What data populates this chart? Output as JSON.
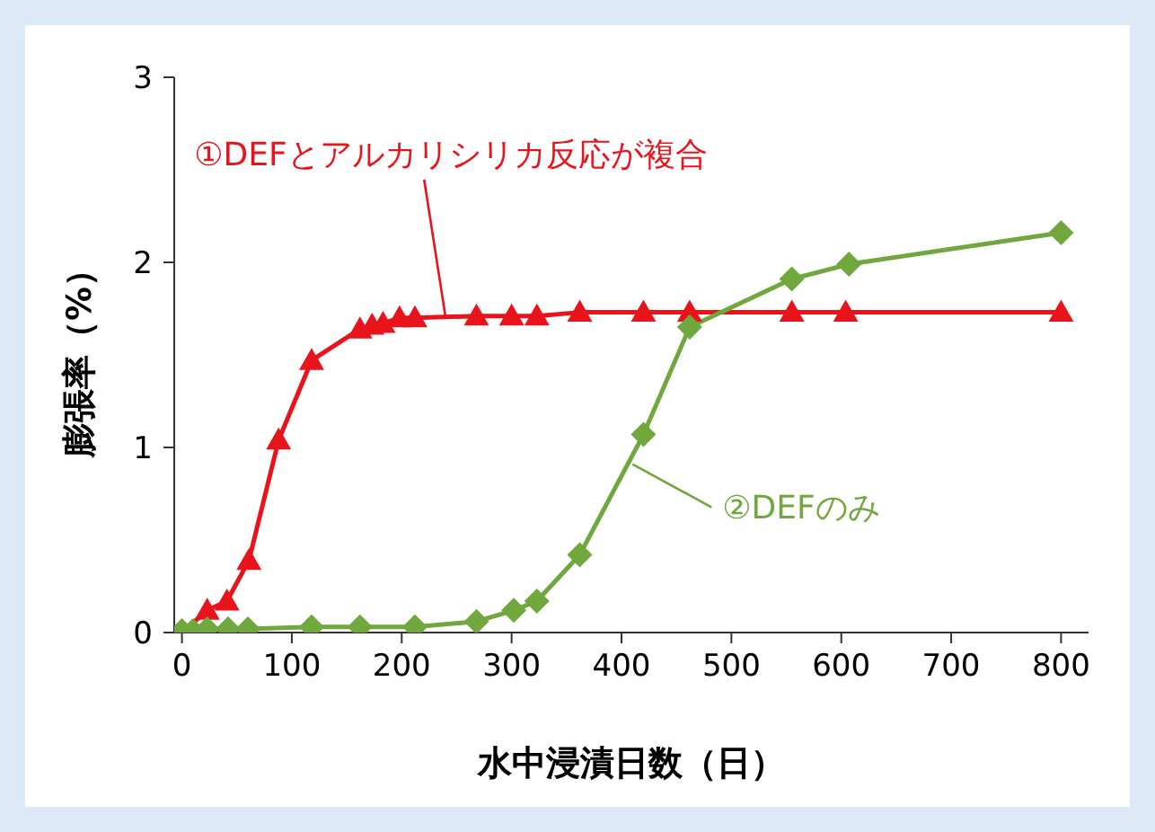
{
  "chart_data": {
    "type": "line",
    "xlabel": "水中浸漬日数（日）",
    "ylabel": "膨張率（%）",
    "xlim": [
      -7,
      825
    ],
    "xticks": [
      0,
      100,
      200,
      300,
      400,
      500,
      600,
      700,
      800
    ],
    "ylim": [
      0,
      3
    ],
    "yticks": [
      0,
      1,
      2,
      3
    ],
    "grid": false,
    "series": [
      {
        "color": "#e8141c",
        "marker": "triangle",
        "x": [
          0,
          23,
          41,
          61,
          88,
          118,
          162,
          173,
          183,
          198,
          212,
          268,
          300,
          323,
          362,
          420,
          462,
          555,
          604,
          800
        ],
        "values": [
          0,
          0.12,
          0.17,
          0.39,
          1.04,
          1.47,
          1.64,
          1.66,
          1.67,
          1.7,
          1.7,
          1.71,
          1.71,
          1.71,
          1.73,
          1.73,
          1.73,
          1.73,
          1.73,
          1.73
        ]
      },
      {
        "color": "#70a83e",
        "marker": "diamond",
        "x": [
          0,
          10,
          23,
          42,
          60,
          118,
          162,
          212,
          268,
          302,
          323,
          362,
          420,
          462,
          555,
          607,
          800
        ],
        "values": [
          0.01,
          0.01,
          0.02,
          0.02,
          0.02,
          0.03,
          0.03,
          0.03,
          0.06,
          0.12,
          0.17,
          0.42,
          1.07,
          1.65,
          1.91,
          1.99,
          2.16
        ]
      }
    ],
    "annotations": [
      {
        "text": "①DEFとアルカリシリカ反応が複合",
        "x": 240,
        "y": 1.7
      },
      {
        "text": "②DEFのみ",
        "x": 410,
        "y": 0.91
      }
    ]
  }
}
